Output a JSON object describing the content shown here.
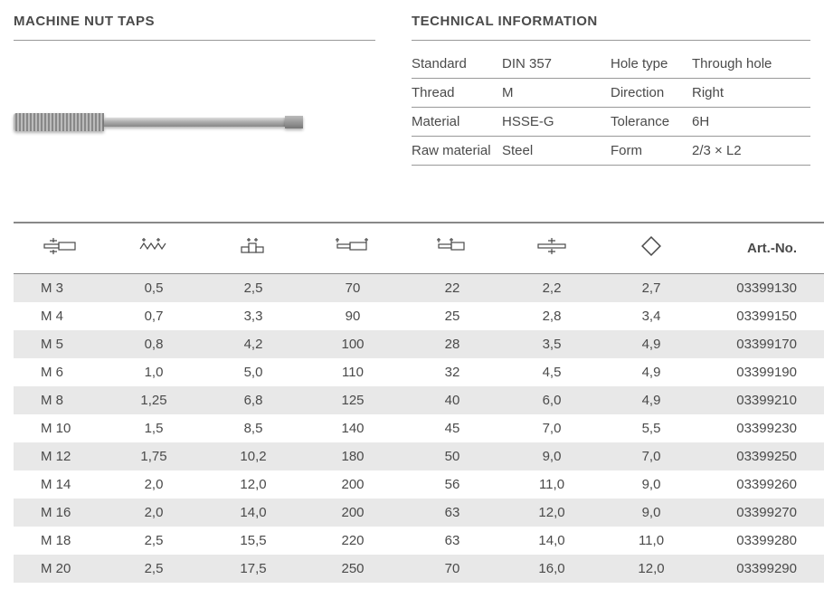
{
  "header": {
    "left_title": "MACHINE NUT TAPS",
    "right_title": "TECHNICAL INFORMATION"
  },
  "info": {
    "rows": [
      {
        "l1": "Standard",
        "v1": "DIN 357",
        "l2": "Hole type",
        "v2": "Through hole"
      },
      {
        "l1": "Thread",
        "v1": "M",
        "l2": "Direction",
        "v2": "Right"
      },
      {
        "l1": "Material",
        "v1": "HSSE-G",
        "l2": "Tolerance",
        "v2": "6H"
      },
      {
        "l1": "Raw material",
        "v1": "Steel",
        "l2": "Form",
        "v2": "2/3 × L2"
      }
    ]
  },
  "table": {
    "art_header": "Art.-No.",
    "columns": [
      "thread_size",
      "pitch",
      "col3",
      "length",
      "col5",
      "col6",
      "col7",
      "art"
    ],
    "rows": [
      {
        "c0": "M 3",
        "c1": "0,5",
        "c2": "2,5",
        "c3": "70",
        "c4": "22",
        "c5": "2,2",
        "c6": "2,7",
        "c7": "03399130"
      },
      {
        "c0": "M 4",
        "c1": "0,7",
        "c2": "3,3",
        "c3": "90",
        "c4": "25",
        "c5": "2,8",
        "c6": "3,4",
        "c7": "03399150"
      },
      {
        "c0": "M 5",
        "c1": "0,8",
        "c2": "4,2",
        "c3": "100",
        "c4": "28",
        "c5": "3,5",
        "c6": "4,9",
        "c7": "03399170"
      },
      {
        "c0": "M 6",
        "c1": "1,0",
        "c2": "5,0",
        "c3": "110",
        "c4": "32",
        "c5": "4,5",
        "c6": "4,9",
        "c7": "03399190"
      },
      {
        "c0": "M 8",
        "c1": "1,25",
        "c2": "6,8",
        "c3": "125",
        "c4": "40",
        "c5": "6,0",
        "c6": "4,9",
        "c7": "03399210"
      },
      {
        "c0": "M 10",
        "c1": "1,5",
        "c2": "8,5",
        "c3": "140",
        "c4": "45",
        "c5": "7,0",
        "c6": "5,5",
        "c7": "03399230"
      },
      {
        "c0": "M 12",
        "c1": "1,75",
        "c2": "10,2",
        "c3": "180",
        "c4": "50",
        "c5": "9,0",
        "c6": "7,0",
        "c7": "03399250"
      },
      {
        "c0": "M 14",
        "c1": "2,0",
        "c2": "12,0",
        "c3": "200",
        "c4": "56",
        "c5": "11,0",
        "c6": "9,0",
        "c7": "03399260"
      },
      {
        "c0": "M 16",
        "c1": "2,0",
        "c2": "14,0",
        "c3": "200",
        "c4": "63",
        "c5": "12,0",
        "c6": "9,0",
        "c7": "03399270"
      },
      {
        "c0": "M 18",
        "c1": "2,5",
        "c2": "15,5",
        "c3": "220",
        "c4": "63",
        "c5": "14,0",
        "c6": "11,0",
        "c7": "03399280"
      },
      {
        "c0": "M 20",
        "c1": "2,5",
        "c2": "17,5",
        "c3": "250",
        "c4": "70",
        "c5": "16,0",
        "c6": "12,0",
        "c7": "03399290"
      }
    ],
    "colors": {
      "row_alt_bg": "#e8e8e8",
      "text": "#4a4a4a",
      "border": "#888888"
    }
  }
}
